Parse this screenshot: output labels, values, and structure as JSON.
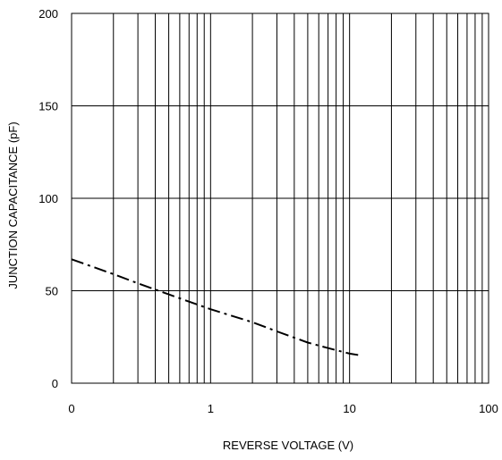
{
  "chart_data": {
    "type": "line",
    "title": "",
    "xlabel": "REVERSE VOLTAGE (V)",
    "ylabel": "JUNCTION CAPACITANCE  (pF)",
    "x_scale": "log",
    "x_tick_labels": [
      "0",
      "1",
      "10",
      "100"
    ],
    "x_ticks": [
      0.1,
      1,
      10,
      100
    ],
    "xlim": [
      0.1,
      100
    ],
    "y_ticks": [
      0,
      50,
      100,
      150,
      200
    ],
    "ylim": [
      0,
      200
    ],
    "grid": true,
    "legend": "none",
    "series": [
      {
        "line_style": "dash-dot",
        "color": "#000000",
        "points": [
          {
            "x": 0.1,
            "y": 67
          },
          {
            "x": 0.2,
            "y": 59
          },
          {
            "x": 0.3,
            "y": 54
          },
          {
            "x": 0.5,
            "y": 48
          },
          {
            "x": 1,
            "y": 40
          },
          {
            "x": 2,
            "y": 33
          },
          {
            "x": 3,
            "y": 28
          },
          {
            "x": 5,
            "y": 22
          },
          {
            "x": 7,
            "y": 19
          },
          {
            "x": 10,
            "y": 16
          },
          {
            "x": 12,
            "y": 15
          }
        ]
      }
    ]
  }
}
